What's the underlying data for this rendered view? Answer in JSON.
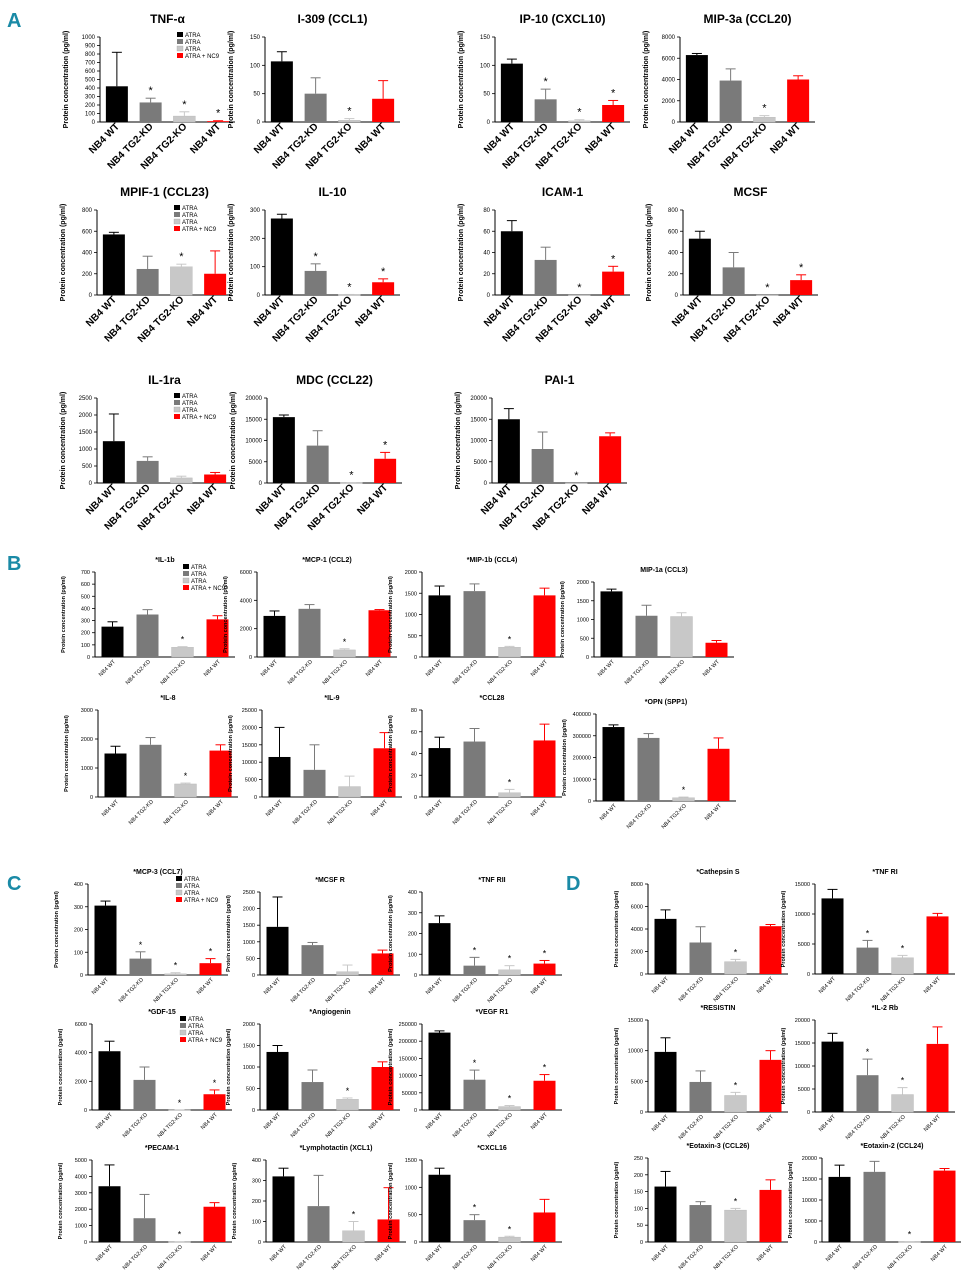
{
  "colors": {
    "black": "#000000",
    "darkgray": "#7a7a7a",
    "lightgray": "#c8c8c8",
    "red": "#ff0000",
    "accent": "#1a8aa6"
  },
  "panel_letters": {
    "a": "A",
    "b": "B",
    "c": "C",
    "d": "D"
  },
  "legend_labels": [
    "ATRA",
    "ATRA",
    "ATRA",
    "ATRA + NC9"
  ],
  "ylabel": "Protein concentration (pg/ml)",
  "categories": [
    "NB4 WT",
    "NB4 TG2-KD",
    "NB4 TG2-KO",
    "NB4 WT"
  ],
  "chart_data": [
    {
      "id": "A1",
      "type": "bar",
      "title": "TNF-α",
      "ylim": [
        0,
        1000
      ],
      "ticks": [
        0,
        100,
        200,
        300,
        400,
        500,
        600,
        700,
        800,
        900,
        1000
      ],
      "values": [
        420,
        230,
        70,
        10
      ],
      "errors": [
        400,
        50,
        50,
        5
      ],
      "stars": [
        false,
        true,
        true,
        true
      ],
      "legend": true
    },
    {
      "id": "A2",
      "type": "bar",
      "title": "I-309 (CCL1)",
      "ylim": [
        0,
        150
      ],
      "ticks": [
        0,
        50,
        100,
        150
      ],
      "values": [
        107,
        50,
        3,
        41
      ],
      "errors": [
        17,
        28,
        3,
        32
      ],
      "stars": [
        false,
        false,
        true,
        false
      ],
      "legend": false
    },
    {
      "id": "A3",
      "type": "bar",
      "title": "IP-10 (CXCL10)",
      "ylim": [
        0,
        150
      ],
      "ticks": [
        0,
        50,
        100,
        150
      ],
      "values": [
        103,
        40,
        2,
        30
      ],
      "errors": [
        8,
        18,
        2,
        8
      ],
      "stars": [
        false,
        true,
        true,
        true
      ],
      "legend": false
    },
    {
      "id": "A4",
      "type": "bar",
      "title": "MIP-3a (CCL20)",
      "ylim": [
        0,
        8000
      ],
      "ticks": [
        0,
        2000,
        4000,
        6000,
        8000
      ],
      "values": [
        6300,
        3900,
        450,
        4000
      ],
      "errors": [
        150,
        1100,
        150,
        350
      ],
      "stars": [
        false,
        false,
        true,
        false
      ],
      "legend": false
    },
    {
      "id": "A5",
      "type": "bar",
      "title": "MPIF-1 (CCL23)",
      "ylim": [
        0,
        800
      ],
      "ticks": [
        0,
        200,
        400,
        600,
        800
      ],
      "values": [
        570,
        245,
        265,
        200
      ],
      "errors": [
        20,
        120,
        25,
        215
      ],
      "stars": [
        false,
        false,
        true,
        false
      ],
      "legend": true
    },
    {
      "id": "A6",
      "type": "bar",
      "title": "IL-10",
      "ylim": [
        0,
        300
      ],
      "ticks": [
        0,
        100,
        200,
        300
      ],
      "values": [
        270,
        85,
        1,
        45
      ],
      "errors": [
        15,
        25,
        1,
        12
      ],
      "stars": [
        false,
        true,
        true,
        true
      ],
      "legend": false
    },
    {
      "id": "A7",
      "type": "bar",
      "title": "ICAM-1",
      "ylim": [
        0,
        80
      ],
      "ticks": [
        0,
        20,
        40,
        60,
        80
      ],
      "values": [
        60,
        33,
        0,
        22
      ],
      "errors": [
        10,
        12,
        0,
        5
      ],
      "stars": [
        false,
        false,
        true,
        true
      ],
      "legend": false
    },
    {
      "id": "A8",
      "type": "bar",
      "title": "MCSF",
      "ylim": [
        0,
        800
      ],
      "ticks": [
        0,
        200,
        400,
        600,
        800
      ],
      "values": [
        530,
        260,
        0,
        140
      ],
      "errors": [
        70,
        140,
        0,
        50
      ],
      "stars": [
        false,
        false,
        true,
        true
      ],
      "legend": false
    },
    {
      "id": "A9",
      "type": "bar",
      "title": "IL-1ra",
      "ylim": [
        0,
        2500
      ],
      "ticks": [
        0,
        500,
        1000,
        1500,
        2000,
        2500
      ],
      "values": [
        1230,
        650,
        150,
        250
      ],
      "errors": [
        800,
        120,
        50,
        60
      ],
      "stars": [
        false,
        false,
        false,
        false
      ],
      "legend": true
    },
    {
      "id": "A10",
      "type": "bar",
      "title": "MDC (CCL22)",
      "ylim": [
        0,
        20000
      ],
      "ticks": [
        0,
        5000,
        10000,
        15000,
        20000
      ],
      "values": [
        15500,
        8800,
        50,
        5700
      ],
      "errors": [
        500,
        3500,
        50,
        1500
      ],
      "stars": [
        false,
        false,
        true,
        true
      ],
      "legend": false
    },
    {
      "id": "A11",
      "type": "bar",
      "title": "PAI-1",
      "ylim": [
        0,
        20000
      ],
      "ticks": [
        0,
        5000,
        10000,
        15000,
        20000
      ],
      "values": [
        15000,
        8000,
        0,
        11000
      ],
      "errors": [
        2500,
        4000,
        0,
        800
      ],
      "stars": [
        false,
        false,
        true,
        false
      ],
      "legend": false
    },
    {
      "id": "B1",
      "type": "bar",
      "title": "*IL-1b",
      "ylim": [
        0,
        700
      ],
      "ticks": [
        0,
        100,
        200,
        300,
        400,
        500,
        600,
        700
      ],
      "values": [
        250,
        350,
        80,
        310
      ],
      "errors": [
        40,
        40,
        5,
        30
      ],
      "stars": [
        false,
        false,
        true,
        false
      ],
      "legend": true
    },
    {
      "id": "B2",
      "type": "bar",
      "title": "*MCP-1 (CCL2)",
      "ylim": [
        0,
        6000
      ],
      "ticks": [
        0,
        2000,
        4000,
        6000
      ],
      "values": [
        2900,
        3400,
        500,
        3300
      ],
      "errors": [
        350,
        300,
        80,
        50
      ],
      "stars": [
        false,
        false,
        true,
        false
      ],
      "legend": false
    },
    {
      "id": "B3",
      "type": "bar",
      "title": "*MIP-1b (CCL4)",
      "ylim": [
        0,
        2000
      ],
      "ticks": [
        0,
        500,
        1000,
        1500,
        2000
      ],
      "values": [
        1450,
        1550,
        230,
        1450
      ],
      "errors": [
        220,
        170,
        20,
        170
      ],
      "stars": [
        false,
        false,
        true,
        false
      ],
      "legend": false
    },
    {
      "id": "B4",
      "type": "bar",
      "title": "MIP-1a (CCL3)",
      "ylim": [
        0,
        2000
      ],
      "ticks": [
        0,
        500,
        1000,
        1500,
        2000
      ],
      "values": [
        1750,
        1100,
        1080,
        380
      ],
      "errors": [
        60,
        280,
        100,
        60
      ],
      "stars": [
        false,
        false,
        false,
        false
      ],
      "legend": false
    },
    {
      "id": "B5",
      "type": "bar",
      "title": "*IL-8",
      "ylim": [
        0,
        3000
      ],
      "ticks": [
        0,
        1000,
        2000,
        3000
      ],
      "values": [
        1500,
        1800,
        450,
        1600
      ],
      "errors": [
        250,
        250,
        30,
        200
      ],
      "stars": [
        false,
        false,
        true,
        false
      ],
      "legend": false
    },
    {
      "id": "B6",
      "type": "bar",
      "title": "*IL-9",
      "ylim": [
        0,
        25000
      ],
      "ticks": [
        0,
        5000,
        10000,
        15000,
        20000,
        25000
      ],
      "values": [
        11500,
        7800,
        3000,
        14000
      ],
      "errors": [
        8500,
        7200,
        3000,
        4500
      ],
      "stars": [
        false,
        false,
        false,
        false
      ],
      "legend": false
    },
    {
      "id": "B7",
      "type": "bar",
      "title": "*CCL28",
      "ylim": [
        0,
        80
      ],
      "ticks": [
        0,
        20,
        40,
        60,
        80
      ],
      "values": [
        45,
        51,
        4,
        52
      ],
      "errors": [
        10,
        12,
        3,
        15
      ],
      "stars": [
        false,
        false,
        true,
        false
      ],
      "legend": false
    },
    {
      "id": "B8",
      "type": "bar",
      "title": "*OPN (SPP1)",
      "ylim": [
        0,
        400000
      ],
      "ticks": [
        0,
        100000,
        200000,
        300000,
        400000
      ],
      "values": [
        340000,
        290000,
        15000,
        240000
      ],
      "errors": [
        10000,
        20000,
        3000,
        50000
      ],
      "stars": [
        false,
        false,
        true,
        false
      ],
      "legend": false
    },
    {
      "id": "C1",
      "type": "bar",
      "title": "*MCP-3 (CCL7)",
      "ylim": [
        0,
        400
      ],
      "ticks": [
        0,
        100,
        200,
        300,
        400
      ],
      "values": [
        305,
        72,
        5,
        52
      ],
      "errors": [
        20,
        30,
        5,
        20
      ],
      "stars": [
        false,
        true,
        true,
        true
      ],
      "legend": true
    },
    {
      "id": "C2",
      "type": "bar",
      "title": "*MCSF R",
      "ylim": [
        0,
        2500
      ],
      "ticks": [
        0,
        500,
        1000,
        1500,
        2000,
        2500
      ],
      "values": [
        1450,
        900,
        100,
        650
      ],
      "errors": [
        900,
        80,
        200,
        100
      ],
      "stars": [
        false,
        false,
        false,
        false
      ],
      "legend": false
    },
    {
      "id": "C3",
      "type": "bar",
      "title": "*TNF RII",
      "ylim": [
        0,
        400
      ],
      "ticks": [
        0,
        100,
        200,
        300,
        400
      ],
      "values": [
        250,
        45,
        25,
        55
      ],
      "errors": [
        35,
        40,
        20,
        15
      ],
      "stars": [
        false,
        true,
        true,
        true
      ],
      "legend": false
    },
    {
      "id": "C4",
      "type": "bar",
      "title": "*GDF-15",
      "ylim": [
        0,
        6000
      ],
      "ticks": [
        0,
        2000,
        4000,
        6000
      ],
      "values": [
        4100,
        2100,
        5,
        1100
      ],
      "errors": [
        700,
        900,
        5,
        300
      ],
      "stars": [
        false,
        false,
        true,
        true
      ],
      "legend": true
    },
    {
      "id": "C5",
      "type": "bar",
      "title": "*Angiogenin",
      "ylim": [
        0,
        2000
      ],
      "ticks": [
        0,
        500,
        1000,
        1500,
        2000
      ],
      "values": [
        1350,
        650,
        250,
        1000
      ],
      "errors": [
        150,
        280,
        30,
        120
      ],
      "stars": [
        false,
        false,
        true,
        false
      ],
      "legend": false
    },
    {
      "id": "C6",
      "type": "bar",
      "title": "*VEGF R1",
      "ylim": [
        0,
        250000
      ],
      "ticks": [
        0,
        50000,
        100000,
        150000,
        200000,
        250000
      ],
      "values": [
        225000,
        88000,
        10000,
        85000
      ],
      "errors": [
        5000,
        28000,
        3000,
        18000
      ],
      "stars": [
        false,
        true,
        true,
        true
      ],
      "legend": false
    },
    {
      "id": "C7",
      "type": "bar",
      "title": "*PECAM-1",
      "ylim": [
        0,
        5000
      ],
      "ticks": [
        0,
        1000,
        2000,
        3000,
        4000,
        5000
      ],
      "values": [
        3400,
        1450,
        10,
        2150
      ],
      "errors": [
        1300,
        1450,
        10,
        250
      ],
      "stars": [
        false,
        false,
        true,
        false
      ],
      "legend": false
    },
    {
      "id": "C8",
      "type": "bar",
      "title": "*Lymphotactin (XCL1)",
      "ylim": [
        0,
        400
      ],
      "ticks": [
        0,
        100,
        200,
        300,
        400
      ],
      "values": [
        320,
        175,
        55,
        110
      ],
      "errors": [
        40,
        150,
        45,
        155
      ],
      "stars": [
        false,
        false,
        true,
        false
      ],
      "legend": false
    },
    {
      "id": "C9",
      "type": "bar",
      "title": "*CXCL16",
      "ylim": [
        0,
        1500
      ],
      "ticks": [
        0,
        500,
        1000,
        1500
      ],
      "values": [
        1230,
        400,
        90,
        540
      ],
      "errors": [
        120,
        100,
        15,
        240
      ],
      "stars": [
        false,
        true,
        true,
        false
      ],
      "legend": false
    },
    {
      "id": "D1",
      "type": "bar",
      "title": "*Cathepsin S",
      "ylim": [
        0,
        8000
      ],
      "ticks": [
        0,
        2000,
        4000,
        6000,
        8000
      ],
      "values": [
        4900,
        2800,
        1100,
        4250
      ],
      "errors": [
        800,
        1400,
        200,
        150
      ],
      "stars": [
        false,
        false,
        true,
        false
      ],
      "legend": false
    },
    {
      "id": "D2",
      "type": "bar",
      "title": "*TNF RI",
      "ylim": [
        0,
        15000
      ],
      "ticks": [
        0,
        5000,
        10000,
        15000
      ],
      "values": [
        12600,
        4400,
        2700,
        9600
      ],
      "errors": [
        1500,
        1200,
        400,
        500
      ],
      "stars": [
        false,
        true,
        true,
        false
      ],
      "legend": false
    },
    {
      "id": "D3",
      "type": "bar",
      "title": "*RESISTIN",
      "ylim": [
        0,
        15000
      ],
      "ticks": [
        0,
        5000,
        10000,
        15000
      ],
      "values": [
        9800,
        4900,
        2700,
        8500
      ],
      "errors": [
        2300,
        1800,
        500,
        1500
      ],
      "stars": [
        false,
        false,
        true,
        false
      ],
      "legend": false
    },
    {
      "id": "D4",
      "type": "bar",
      "title": "*IL-2 Rb",
      "ylim": [
        0,
        20000
      ],
      "ticks": [
        0,
        5000,
        10000,
        15000,
        20000
      ],
      "values": [
        15300,
        8000,
        3800,
        14800
      ],
      "errors": [
        1800,
        3500,
        1500,
        3700
      ],
      "stars": [
        false,
        true,
        true,
        false
      ],
      "legend": false
    },
    {
      "id": "D5",
      "type": "bar",
      "title": "*Eotaxin-3 (CCL26)",
      "ylim": [
        0,
        250
      ],
      "ticks": [
        0,
        50,
        100,
        150,
        200,
        250
      ],
      "values": [
        165,
        110,
        95,
        155
      ],
      "errors": [
        45,
        10,
        5,
        30
      ],
      "stars": [
        false,
        false,
        true,
        false
      ],
      "legend": false
    },
    {
      "id": "D6",
      "type": "bar",
      "title": "*Eotaxin-2 (CCL24)",
      "ylim": [
        0,
        20000
      ],
      "ticks": [
        0,
        5000,
        10000,
        15000,
        20000
      ],
      "values": [
        15500,
        16700,
        50,
        17000
      ],
      "errors": [
        2800,
        2500,
        50,
        500
      ],
      "stars": [
        false,
        false,
        true,
        false
      ],
      "legend": false
    }
  ]
}
